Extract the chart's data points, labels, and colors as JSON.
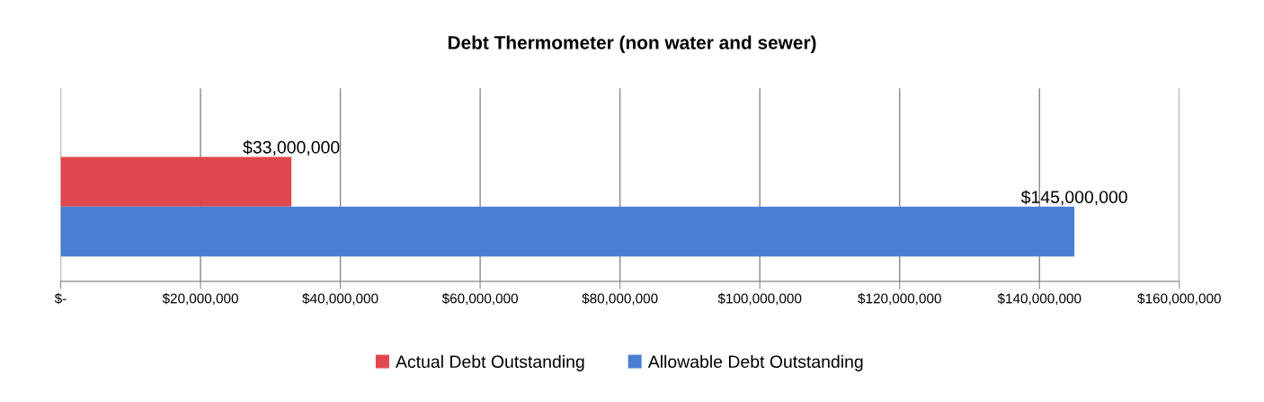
{
  "chart_data": {
    "type": "bar",
    "orientation": "horizontal",
    "title": "Debt Thermometer (non water and sewer)",
    "categories": [
      null
    ],
    "series": [
      {
        "name": "Actual Debt Outstanding",
        "color": "#e0474c",
        "values": [
          33000000
        ],
        "value_labels": [
          "$33,000,000"
        ]
      },
      {
        "name": "Allowable Debt Outstanding",
        "color": "#4a7fd4",
        "values": [
          145000000
        ],
        "value_labels": [
          "$145,000,000"
        ]
      }
    ],
    "xlim": [
      0,
      160000000
    ],
    "xticks": [
      {
        "value": 0,
        "label": "$-"
      },
      {
        "value": 20000000,
        "label": "$20,000,000"
      },
      {
        "value": 40000000,
        "label": "$40,000,000"
      },
      {
        "value": 60000000,
        "label": "$60,000,000"
      },
      {
        "value": 80000000,
        "label": "$80,000,000"
      },
      {
        "value": 100000000,
        "label": "$100,000,000"
      },
      {
        "value": 120000000,
        "label": "$120,000,000"
      },
      {
        "value": 140000000,
        "label": "$140,000,000"
      },
      {
        "value": 160000000,
        "label": "$160,000,000"
      }
    ],
    "grid": "x",
    "legend": "bottom"
  }
}
